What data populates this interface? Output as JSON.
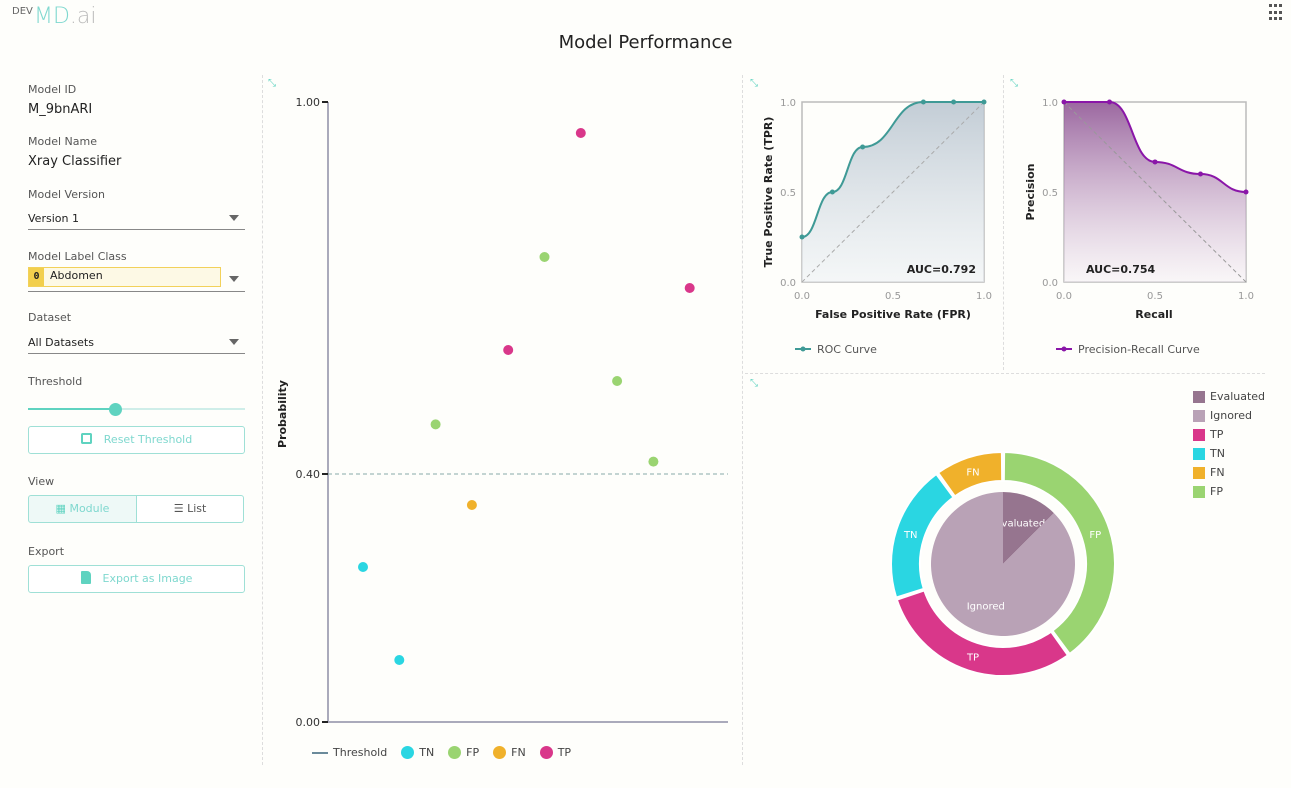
{
  "header": {
    "env": "DEV",
    "logo_main": "MD",
    "logo_suffix": ".ai",
    "title": "Model Performance"
  },
  "sidebar": {
    "model_id_label": "Model ID",
    "model_id": "M_9bnARI",
    "model_name_label": "Model Name",
    "model_name": "Xray Classifier",
    "model_version_label": "Model Version",
    "model_version": "Version 1",
    "label_class_label": "Model Label Class",
    "label_class_index": "0",
    "label_class": "Abdomen",
    "dataset_label": "Dataset",
    "dataset": "All Datasets",
    "threshold_label": "Threshold",
    "threshold_value": 0.4,
    "reset_threshold": "Reset Threshold",
    "view_label": "View",
    "view_module": "Module",
    "view_list": "List",
    "view_selected": "Module",
    "export_label": "Export",
    "export_button": "Export as Image"
  },
  "colors": {
    "accent": "#5fd3c0",
    "TN": "#2ad6e2",
    "FP": "#9ad471",
    "FN": "#f0b12b",
    "TP": "#d9378a",
    "Evaluated": "#96758f",
    "Ignored": "#b9a2b6",
    "roc": "#3f9a96",
    "pr": "#8a16a8"
  },
  "chart_data": [
    {
      "type": "scatter",
      "ylabel": "Probability",
      "ylim": [
        0,
        1
      ],
      "yticks": [
        "0.00",
        "0.40",
        "1.00"
      ],
      "threshold": 0.4,
      "legend": [
        "Threshold",
        "TN",
        "FP",
        "FN",
        "TP"
      ],
      "points": [
        {
          "cls": "TN",
          "y": 0.25
        },
        {
          "cls": "TN",
          "y": 0.1
        },
        {
          "cls": "FP",
          "y": 0.48
        },
        {
          "cls": "FN",
          "y": 0.35
        },
        {
          "cls": "TP",
          "y": 0.6
        },
        {
          "cls": "FP",
          "y": 0.75
        },
        {
          "cls": "TP",
          "y": 0.95
        },
        {
          "cls": "FP",
          "y": 0.55
        },
        {
          "cls": "FP",
          "y": 0.42
        },
        {
          "cls": "TP",
          "y": 0.7
        }
      ]
    },
    {
      "type": "line",
      "title": "",
      "xlabel": "False Positive Rate (FPR)",
      "ylabel": "True Positive Rate (TPR)",
      "xlim": [
        0,
        1
      ],
      "ylim": [
        0,
        1
      ],
      "ticks": [
        "0.0",
        "0.5",
        "1.0"
      ],
      "auc_label": "AUC=0.792",
      "legend": "ROC Curve",
      "x": [
        0,
        0.167,
        0.333,
        0.667,
        0.833,
        1
      ],
      "y": [
        0.25,
        0.5,
        0.75,
        1,
        1,
        1
      ]
    },
    {
      "type": "line",
      "xlabel": "Recall",
      "ylabel": "Precision",
      "xlim": [
        0,
        1
      ],
      "ylim": [
        0,
        1
      ],
      "ticks": [
        "0.0",
        "0.5",
        "1.0"
      ],
      "auc_label": "AUC=0.754",
      "legend": "Precision-Recall Curve",
      "x": [
        0,
        0.25,
        0.5,
        0.75,
        1
      ],
      "y": [
        1,
        1,
        0.667,
        0.6,
        0.5
      ]
    },
    {
      "type": "pie",
      "inner": [
        {
          "label": "Evaluated",
          "value": 10
        },
        {
          "label": "Ignored",
          "value": 70
        }
      ],
      "outer": [
        {
          "label": "FP",
          "value": 4
        },
        {
          "label": "TP",
          "value": 3
        },
        {
          "label": "TN",
          "value": 2
        },
        {
          "label": "FN",
          "value": 1
        }
      ],
      "legend": [
        "Evaluated",
        "Ignored",
        "TP",
        "TN",
        "FN",
        "FP"
      ]
    }
  ]
}
